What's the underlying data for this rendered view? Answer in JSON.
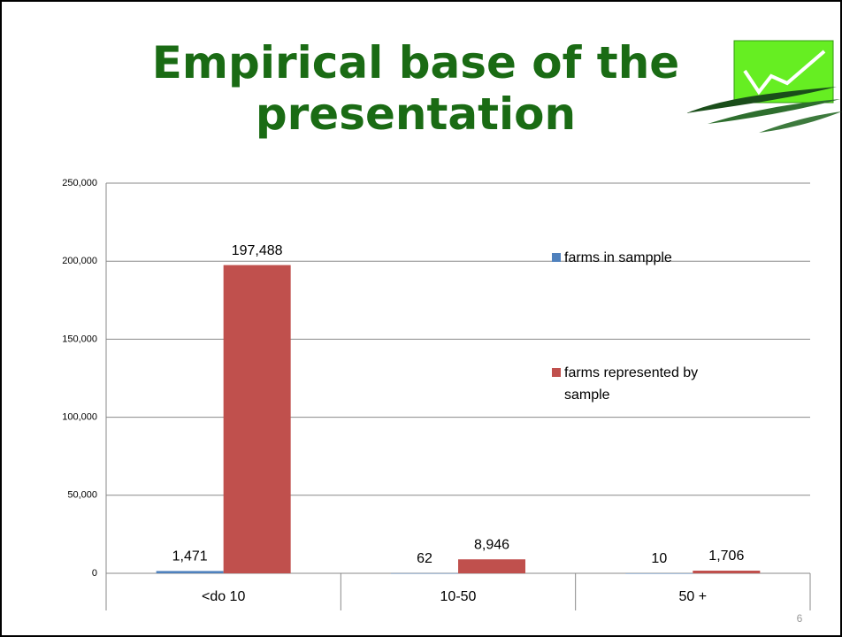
{
  "title": "Empirical base of the presentation",
  "page_number": 6,
  "chart_data": {
    "type": "bar",
    "categories": [
      "<do 10",
      "10-50",
      "50 +"
    ],
    "series": [
      {
        "name": "farms in  sampple",
        "color": "#4f81bd",
        "values": [
          1471,
          62,
          10
        ],
        "value_labels": [
          "1,471",
          "62",
          "10"
        ]
      },
      {
        "name": "farms represented by sample",
        "color": "#c0504d",
        "values": [
          197488,
          8946,
          1706
        ],
        "value_labels": [
          "197,488",
          "8,946",
          "1,706"
        ]
      }
    ],
    "ylim": [
      0,
      250000
    ],
    "yticks": [
      0,
      {
        "value": 50000,
        "label": "50,000"
      },
      {
        "value": 100000,
        "label": "100,000"
      },
      {
        "value": 150000,
        "label": "150,000"
      },
      {
        "value": 200000,
        "label": "200,000"
      },
      {
        "value": 250000,
        "label": "250,000"
      }
    ],
    "grid": true,
    "legend": "right"
  }
}
